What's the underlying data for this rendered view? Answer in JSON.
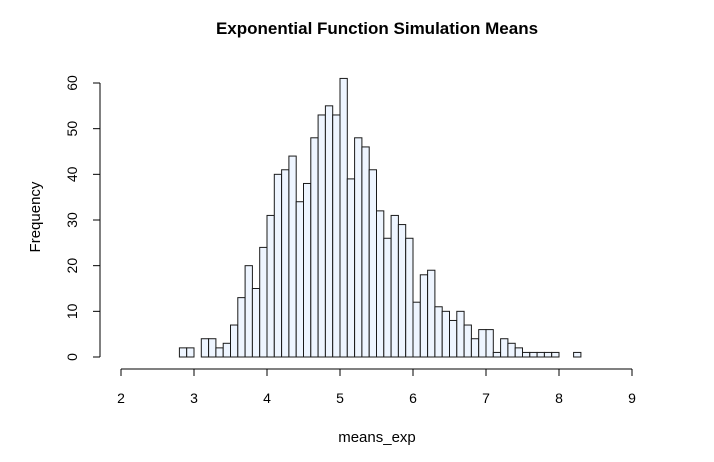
{
  "chart_data": {
    "type": "bar",
    "title": "Exponential Function Simulation Means",
    "xlabel": "means_exp",
    "ylabel": "Frequency",
    "xlim": [
      2,
      9
    ],
    "ylim": [
      0,
      60
    ],
    "x_ticks": [
      2,
      3,
      4,
      5,
      6,
      7,
      8,
      9
    ],
    "y_ticks": [
      0,
      10,
      20,
      30,
      40,
      50,
      60
    ],
    "bin_start": 2.8,
    "bin_width": 0.1,
    "values": [
      2,
      2,
      0,
      4,
      4,
      2,
      3,
      7,
      13,
      20,
      15,
      24,
      31,
      40,
      41,
      44,
      34,
      38,
      48,
      53,
      55,
      53,
      61,
      39,
      48,
      46,
      41,
      32,
      26,
      31,
      29,
      26,
      12,
      18,
      19,
      11,
      10,
      8,
      10,
      7,
      4,
      6,
      6,
      1,
      4,
      3,
      2,
      1,
      1,
      1,
      1,
      1,
      0,
      0,
      1
    ],
    "bar_fill": "#eef5ff",
    "bar_stroke": "#1a1a1a",
    "grid": false,
    "legend": "none"
  }
}
